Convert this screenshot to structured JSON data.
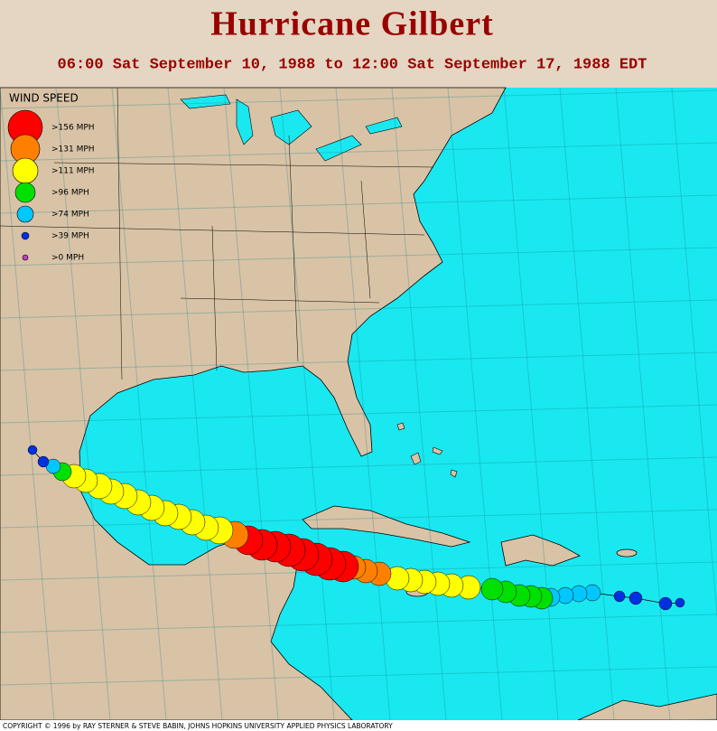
{
  "header": {
    "title": "Hurricane Gilbert",
    "subtitle": "06:00 Sat September 10, 1988 to 12:00 Sat September 17, 1988 EDT"
  },
  "legend": {
    "title": "WIND SPEED",
    "items": [
      {
        "label": ">156 MPH"
      },
      {
        "label": ">131 MPH"
      },
      {
        "label": ">111 MPH"
      },
      {
        "label": ">96 MPH"
      },
      {
        "label": ">74 MPH"
      },
      {
        "label": ">39 MPH"
      },
      {
        "label": ">0 MPH"
      }
    ]
  },
  "footer": {
    "copyright": "COPYRIGHT © 1996 by RAY STERNER & STEVE BABIN, JOHNS HOPKINS UNIVERSITY APPLIED PHYSICS LABORATORY"
  }
}
